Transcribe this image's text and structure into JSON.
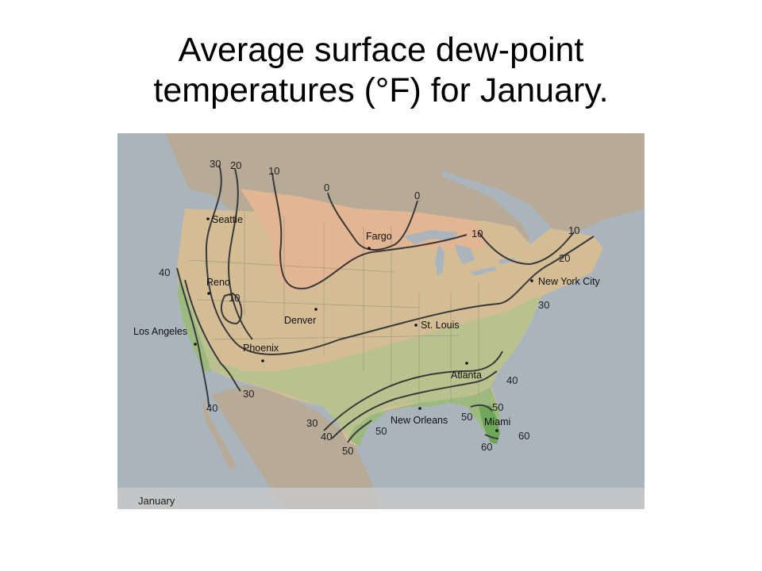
{
  "title": {
    "line1": "Average surface dew-point",
    "line2": "temperatures (°F) for January."
  },
  "map": {
    "month_label": "January",
    "cities": [
      {
        "name": "Seattle"
      },
      {
        "name": "Reno"
      },
      {
        "name": "Los Angeles"
      },
      {
        "name": "Phoenix"
      },
      {
        "name": "Denver"
      },
      {
        "name": "Fargo"
      },
      {
        "name": "St. Louis"
      },
      {
        "name": "New York City"
      },
      {
        "name": "Atlanta"
      },
      {
        "name": "New Orleans"
      },
      {
        "name": "Miami"
      }
    ],
    "isoline_labels": [
      "30",
      "20",
      "10",
      "0",
      "0",
      "10",
      "10",
      "20",
      "40",
      "10",
      "30",
      "40",
      "30",
      "30",
      "40",
      "40",
      "50",
      "50",
      "50",
      "60",
      "60",
      "50"
    ],
    "colors": {
      "ocean": "#aab4bd",
      "land_outside": "#b7aa97",
      "cold_zone": "#e2b693",
      "mid_zone": "#d4bc95",
      "moist_zone": "#b9c28f",
      "wet_zone": "#9cb97f",
      "wettest_zone": "#6ea65a",
      "contour": "#3a3a3a"
    }
  }
}
